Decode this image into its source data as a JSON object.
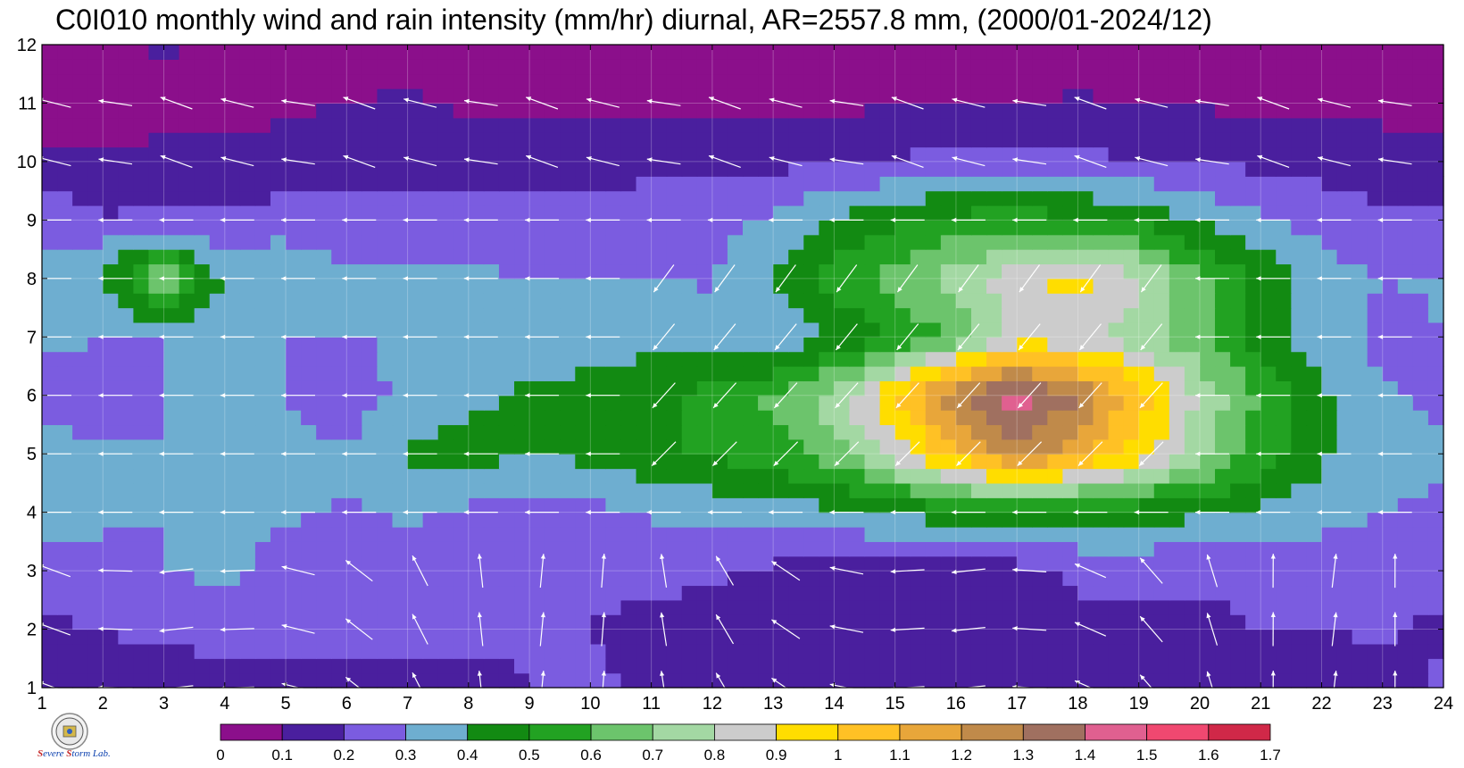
{
  "title": "C0I010 monthly wind and rain intensity (mm/hr) diurnal, AR=2557.8 mm, (2000/01-2024/12)",
  "logo": {
    "text": "Severe Storm Lab."
  },
  "chart_data": {
    "type": "heatmap",
    "title": "C0I010 monthly wind and rain intensity (mm/hr) diurnal, AR=2557.8 mm, (2000/01-2024/12)",
    "xlabel": "",
    "ylabel": "",
    "xlim": [
      1,
      24
    ],
    "ylim": [
      1,
      12
    ],
    "x_ticks": [
      1,
      2,
      3,
      4,
      5,
      6,
      7,
      8,
      9,
      10,
      11,
      12,
      13,
      14,
      15,
      16,
      17,
      18,
      19,
      20,
      21,
      22,
      23,
      24
    ],
    "y_ticks": [
      1,
      2,
      3,
      4,
      5,
      6,
      7,
      8,
      9,
      10,
      11,
      12
    ],
    "grid": true,
    "colorbar": {
      "levels": [
        "0",
        "0.1",
        "0.2",
        "0.3",
        "0.4",
        "0.5",
        "0.6",
        "0.7",
        "0.8",
        "0.9",
        "1",
        "1.1",
        "1.2",
        "1.3",
        "1.4",
        "1.5",
        "1.6",
        "1.7"
      ],
      "colors": [
        "#8b0f8b",
        "#4a1f9e",
        "#7b5ce0",
        "#6eaed0",
        "#128a12",
        "#22a222",
        "#6cc46c",
        "#a3d8a3",
        "#cccccc",
        "#ffdd00",
        "#ffc125",
        "#e8a63a",
        "#c08a4a",
        "#a07060",
        "#e06090",
        "#f04870",
        "#d02848"
      ]
    },
    "series": [
      {
        "name": "rain intensity",
        "z": [
          [
            0.12,
            0.15,
            0.15,
            0.18,
            0.17,
            0.17,
            0.17,
            0.15,
            0.2,
            0.25,
            0.15,
            0.16,
            0.18,
            0.18,
            0.18,
            0.18,
            0.17,
            0.16,
            0.16,
            0.15,
            0.18,
            0.18,
            0.16,
            0.22
          ],
          [
            0.18,
            0.2,
            0.22,
            0.22,
            0.24,
            0.24,
            0.24,
            0.24,
            0.22,
            0.19,
            0.16,
            0.16,
            0.14,
            0.14,
            0.15,
            0.16,
            0.18,
            0.17,
            0.17,
            0.17,
            0.2,
            0.2,
            0.21,
            0.18
          ],
          [
            0.25,
            0.28,
            0.3,
            0.32,
            0.27,
            0.27,
            0.26,
            0.26,
            0.23,
            0.26,
            0.23,
            0.22,
            0.18,
            0.15,
            0.15,
            0.16,
            0.16,
            0.22,
            0.22,
            0.22,
            0.24,
            0.24,
            0.24,
            0.24
          ],
          [
            0.35,
            0.31,
            0.3,
            0.31,
            0.31,
            0.29,
            0.31,
            0.28,
            0.26,
            0.27,
            0.31,
            0.33,
            0.35,
            0.37,
            0.41,
            0.45,
            0.48,
            0.44,
            0.44,
            0.42,
            0.37,
            0.34,
            0.3,
            0.29
          ],
          [
            0.32,
            0.31,
            0.3,
            0.38,
            0.32,
            0.32,
            0.41,
            0.44,
            0.4,
            0.43,
            0.48,
            0.52,
            0.55,
            0.65,
            0.85,
            1.05,
            1.25,
            1.15,
            0.95,
            0.75,
            0.55,
            0.42,
            0.33,
            0.31
          ],
          [
            0.27,
            0.28,
            0.3,
            0.33,
            0.3,
            0.23,
            0.34,
            0.38,
            0.42,
            0.45,
            0.48,
            0.53,
            0.62,
            0.76,
            1.0,
            1.3,
            1.48,
            1.3,
            1.05,
            0.78,
            0.58,
            0.42,
            0.31,
            0.28
          ],
          [
            0.31,
            0.3,
            0.3,
            0.3,
            0.3,
            0.3,
            0.31,
            0.33,
            0.34,
            0.33,
            0.36,
            0.34,
            0.31,
            0.4,
            0.52,
            0.62,
            0.84,
            0.82,
            0.74,
            0.62,
            0.45,
            0.35,
            0.27,
            0.3
          ],
          [
            0.32,
            0.41,
            0.72,
            0.38,
            0.41,
            0.32,
            0.32,
            0.32,
            0.3,
            0.3,
            0.3,
            0.29,
            0.42,
            0.55,
            0.63,
            0.75,
            0.87,
            0.95,
            0.82,
            0.63,
            0.48,
            0.34,
            0.3,
            0.31
          ],
          [
            0.28,
            0.21,
            0.22,
            0.21,
            0.24,
            0.24,
            0.24,
            0.24,
            0.22,
            0.24,
            0.26,
            0.27,
            0.31,
            0.41,
            0.48,
            0.53,
            0.56,
            0.52,
            0.47,
            0.38,
            0.31,
            0.27,
            0.21,
            0.21
          ],
          [
            0.12,
            0.11,
            0.12,
            0.14,
            0.14,
            0.16,
            0.16,
            0.17,
            0.18,
            0.16,
            0.17,
            0.17,
            0.18,
            0.19,
            0.21,
            0.23,
            0.26,
            0.22,
            0.21,
            0.2,
            0.17,
            0.16,
            0.15,
            0.13
          ],
          [
            0.05,
            0.06,
            0.07,
            0.06,
            0.08,
            0.1,
            0.11,
            0.08,
            0.07,
            0.07,
            0.07,
            0.07,
            0.07,
            0.08,
            0.09,
            0.09,
            0.09,
            0.11,
            0.09,
            0.09,
            0.08,
            0.07,
            0.07,
            0.07
          ],
          [
            0.05,
            0.07,
            0.11,
            0.09,
            0.06,
            0.06,
            0.06,
            0.06,
            0.06,
            0.06,
            0.06,
            0.06,
            0.06,
            0.06,
            0.06,
            0.06,
            0.06,
            0.06,
            0.06,
            0.06,
            0.06,
            0.06,
            0.06,
            0.06
          ]
        ]
      }
    ],
    "wind_vectors": {
      "description_units": "relative direction only",
      "x": [
        1,
        2,
        3,
        4,
        5,
        6,
        7,
        8,
        9,
        10,
        11,
        12,
        13,
        14,
        15,
        16,
        17,
        18,
        19,
        20,
        21,
        22,
        23,
        24
      ],
      "y": [
        1,
        2,
        3,
        4,
        5,
        6,
        7,
        8,
        9,
        10,
        11,
        12
      ]
    }
  }
}
